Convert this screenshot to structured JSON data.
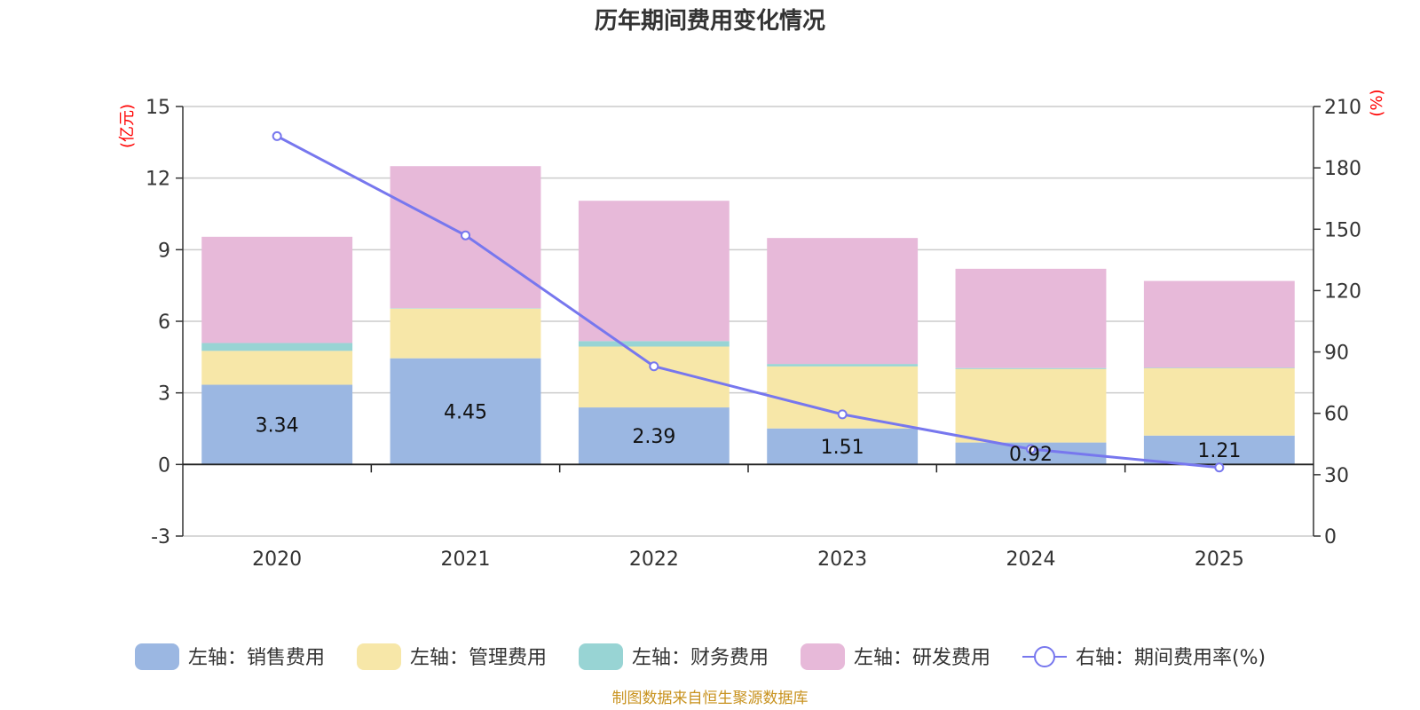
{
  "chart_data": {
    "type": "bar",
    "stacked": true,
    "title": "历年期间费用变化情况",
    "categories": [
      "2020",
      "2021",
      "2022",
      "2023",
      "2024",
      "2025"
    ],
    "left_axis": {
      "unit": "(亿元)",
      "ylim": [
        -3,
        15
      ],
      "ticks": [
        -3,
        0,
        3,
        6,
        9,
        12,
        15
      ]
    },
    "right_axis": {
      "unit": "(%)",
      "ylim": [
        0,
        210
      ],
      "ticks": [
        0,
        30,
        60,
        90,
        120,
        150,
        180,
        210
      ]
    },
    "series": [
      {
        "name": "左轴：销售费用",
        "axis": "left",
        "color": "#9bb7e2",
        "values": [
          3.34,
          4.45,
          2.39,
          1.51,
          0.92,
          1.21
        ],
        "show_labels": true
      },
      {
        "name": "左轴：管理费用",
        "axis": "left",
        "color": "#f7e7a8",
        "values": [
          1.42,
          2.08,
          2.55,
          2.6,
          3.08,
          2.82
        ]
      },
      {
        "name": "左轴：财务费用",
        "axis": "left",
        "color": "#98d4d4",
        "values": [
          0.33,
          0.02,
          0.23,
          0.1,
          0.04,
          0.02
        ]
      },
      {
        "name": "左轴：研发费用",
        "axis": "left",
        "color": "#e7b9d9",
        "values": [
          4.45,
          5.95,
          5.88,
          5.28,
          4.16,
          3.64
        ]
      }
    ],
    "line_series": {
      "name": "右轴：期间费用率(%)",
      "axis": "right",
      "color": "#7777ee",
      "values": [
        195.5,
        147,
        83,
        59.5,
        42.5,
        33.5
      ]
    },
    "legend_position": "bottom",
    "grid": true
  },
  "source_note": "制图数据来自恒生聚源数据库"
}
